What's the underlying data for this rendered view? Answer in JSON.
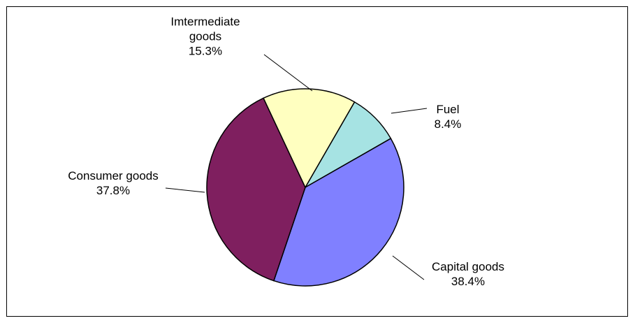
{
  "chart_data": {
    "type": "pie",
    "title": "",
    "slices": [
      {
        "label_lines": [
          "Fuel"
        ],
        "percent_label": "8.4%",
        "value": 8.4,
        "color": "#A6E3E3"
      },
      {
        "label_lines": [
          "Capital goods"
        ],
        "percent_label": "38.4%",
        "value": 38.4,
        "color": "#8080FF"
      },
      {
        "label_lines": [
          "Consumer goods"
        ],
        "percent_label": "37.8%",
        "value": 37.8,
        "color": "#7F1F5F"
      },
      {
        "label_lines": [
          "Imtermediate",
          "goods"
        ],
        "percent_label": "15.3%",
        "value": 15.3,
        "color": "#FFFFC0"
      }
    ],
    "legend": "none",
    "start_angle_deg": 30,
    "direction": "clockwise"
  }
}
